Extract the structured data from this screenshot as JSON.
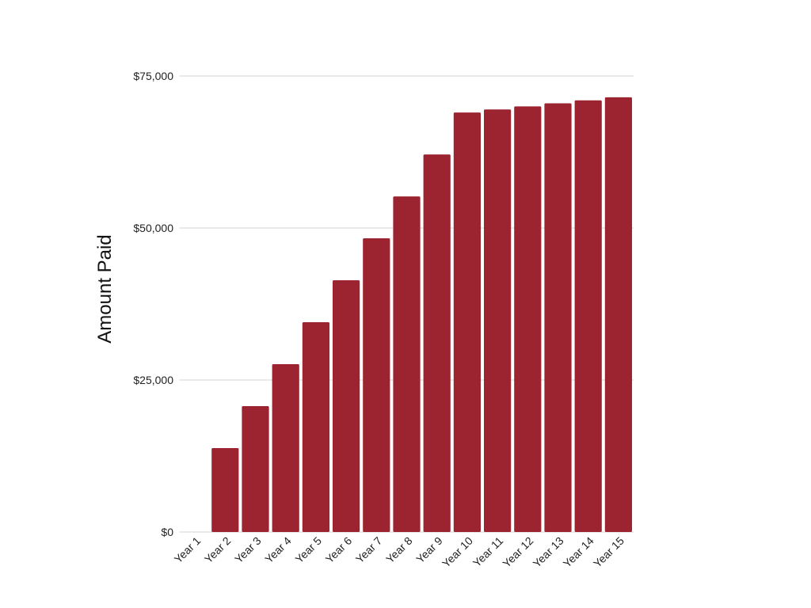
{
  "chart_data": {
    "type": "bar",
    "title": "",
    "xlabel": "",
    "ylabel": "Amount Paid",
    "categories": [
      "Year 1",
      "Year 2",
      "Year 3",
      "Year 4",
      "Year 5",
      "Year 6",
      "Year 7",
      "Year 8",
      "Year 9",
      "Year 10",
      "Year 11",
      "Year 12",
      "Year 13",
      "Year 14",
      "Year 15"
    ],
    "values": [
      0,
      13800,
      20700,
      27600,
      34500,
      41400,
      48300,
      55200,
      62100,
      69000,
      69500,
      70000,
      70500,
      71000,
      71500
    ],
    "ylim": [
      0,
      75000
    ],
    "yticks": [
      0,
      25000,
      50000,
      75000
    ],
    "ytick_labels": [
      "$0",
      "$25,000",
      "$50,000",
      "$75,000"
    ],
    "grid": true,
    "legend": "none",
    "bar_color": "#9c2430",
    "grid_color": "#d4d4d4"
  }
}
